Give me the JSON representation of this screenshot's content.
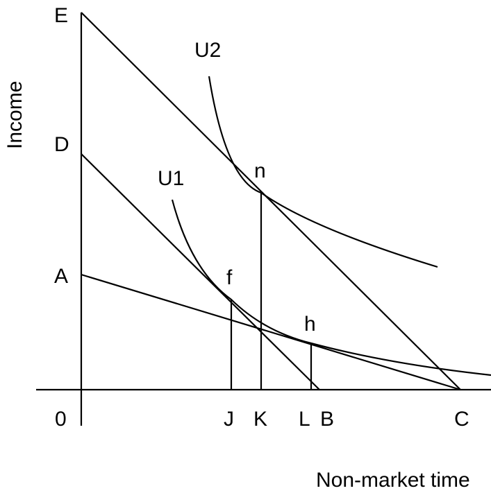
{
  "axes": {
    "y_title": "Income",
    "x_title": "Non-market time",
    "origin": "0"
  },
  "y_points": {
    "E": "E",
    "D": "D",
    "A": "A"
  },
  "x_points": {
    "J": "J",
    "K": "K",
    "L": "L",
    "B": "B",
    "C": "C"
  },
  "tangency_points": {
    "n": "n",
    "f": "f",
    "h": "h"
  },
  "curves": {
    "u1": "U1",
    "u2": "U2"
  }
}
